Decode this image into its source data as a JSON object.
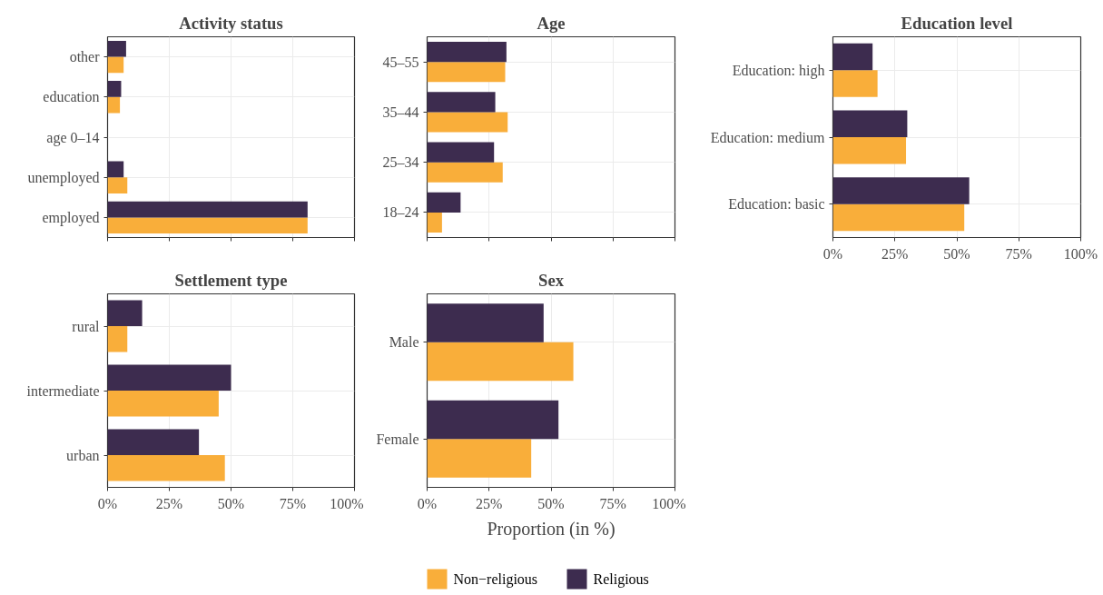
{
  "chart_data": [
    {
      "type": "bar",
      "orientation": "horizontal",
      "title": "Activity status",
      "categories": [
        "other",
        "education",
        "age 0–14",
        "unemployed",
        "employed"
      ],
      "series": [
        {
          "name": "Non−religious",
          "color": "#f9ae3a",
          "values": [
            6.5,
            5,
            0,
            8,
            81
          ]
        },
        {
          "name": "Religious",
          "color": "#3d2c4f",
          "values": [
            7.5,
            5.5,
            0,
            6.5,
            81
          ]
        }
      ],
      "xlim": [
        0,
        100
      ],
      "xticks": [
        {
          "value": 0,
          "label": null
        },
        {
          "value": 25,
          "label": null
        },
        {
          "value": 50,
          "label": null
        },
        {
          "value": 75,
          "label": null
        },
        {
          "value": 100,
          "label": null
        }
      ],
      "tick_labels": "y",
      "grid": true,
      "legend": "bottom"
    },
    {
      "type": "bar",
      "orientation": "horizontal",
      "title": "Age",
      "categories": [
        "45–55",
        "35–44",
        "25–34",
        "18–24"
      ],
      "series": [
        {
          "color": "#f9ae3a",
          "values": [
            31.5,
            32.5,
            30.5,
            6
          ]
        },
        {
          "color": "#3d2c4f",
          "values": [
            32,
            27.5,
            27,
            13.5
          ]
        }
      ],
      "xlim": [
        0,
        100
      ],
      "xticks": [
        {
          "value": 0,
          "label": null
        },
        {
          "value": 25,
          "label": null
        },
        {
          "value": 50,
          "label": null
        },
        {
          "value": 75,
          "label": null
        },
        {
          "value": 100,
          "label": null
        }
      ],
      "tick_labels": "y",
      "grid": true
    },
    {
      "type": "bar",
      "orientation": "horizontal",
      "title": "Education level",
      "categories": [
        "Education: high",
        "Education: medium",
        "Education: basic"
      ],
      "series": [
        {
          "color": "#f9ae3a",
          "values": [
            18,
            29.5,
            53
          ]
        },
        {
          "color": "#3d2c4f",
          "values": [
            16,
            30,
            55
          ]
        }
      ],
      "xlim": [
        0,
        100
      ],
      "xticks": [
        {
          "value": 0,
          "label": "0%"
        },
        {
          "value": 25,
          "label": "25%"
        },
        {
          "value": 50,
          "label": "50%"
        },
        {
          "value": 75,
          "label": "75%"
        },
        {
          "value": 100,
          "label": "100%"
        }
      ],
      "grid": true
    },
    {
      "type": "bar",
      "orientation": "horizontal",
      "title": "Settlement type",
      "categories": [
        "rural",
        "intermediate",
        "urban"
      ],
      "series": [
        {
          "color": "#f9ae3a",
          "values": [
            8,
            45,
            47.5
          ]
        },
        {
          "color": "#3d2c4f",
          "values": [
            14,
            50,
            37
          ]
        }
      ],
      "xlim": [
        0,
        100
      ],
      "xticks": [
        {
          "value": 0,
          "label": "0%"
        },
        {
          "value": 25,
          "label": "25%"
        },
        {
          "value": 50,
          "label": "50%"
        },
        {
          "value": 75,
          "label": "75%"
        },
        {
          "value": 100,
          "label": "100%"
        }
      ],
      "grid": true
    },
    {
      "type": "bar",
      "orientation": "horizontal",
      "title": "Sex",
      "xlabel": "Proportion (in %)",
      "categories": [
        "Male",
        "Female"
      ],
      "series": [
        {
          "color": "#f9ae3a",
          "values": [
            59,
            42
          ]
        },
        {
          "color": "#3d2c4f",
          "values": [
            47,
            53
          ]
        }
      ],
      "xlim": [
        0,
        100
      ],
      "xticks": [
        {
          "value": 0,
          "label": "0%"
        },
        {
          "value": 25,
          "label": "25%"
        },
        {
          "value": 50,
          "label": "50%"
        },
        {
          "value": 75,
          "label": "75%"
        },
        {
          "value": 100,
          "label": "100%"
        }
      ],
      "grid": true
    }
  ]
}
